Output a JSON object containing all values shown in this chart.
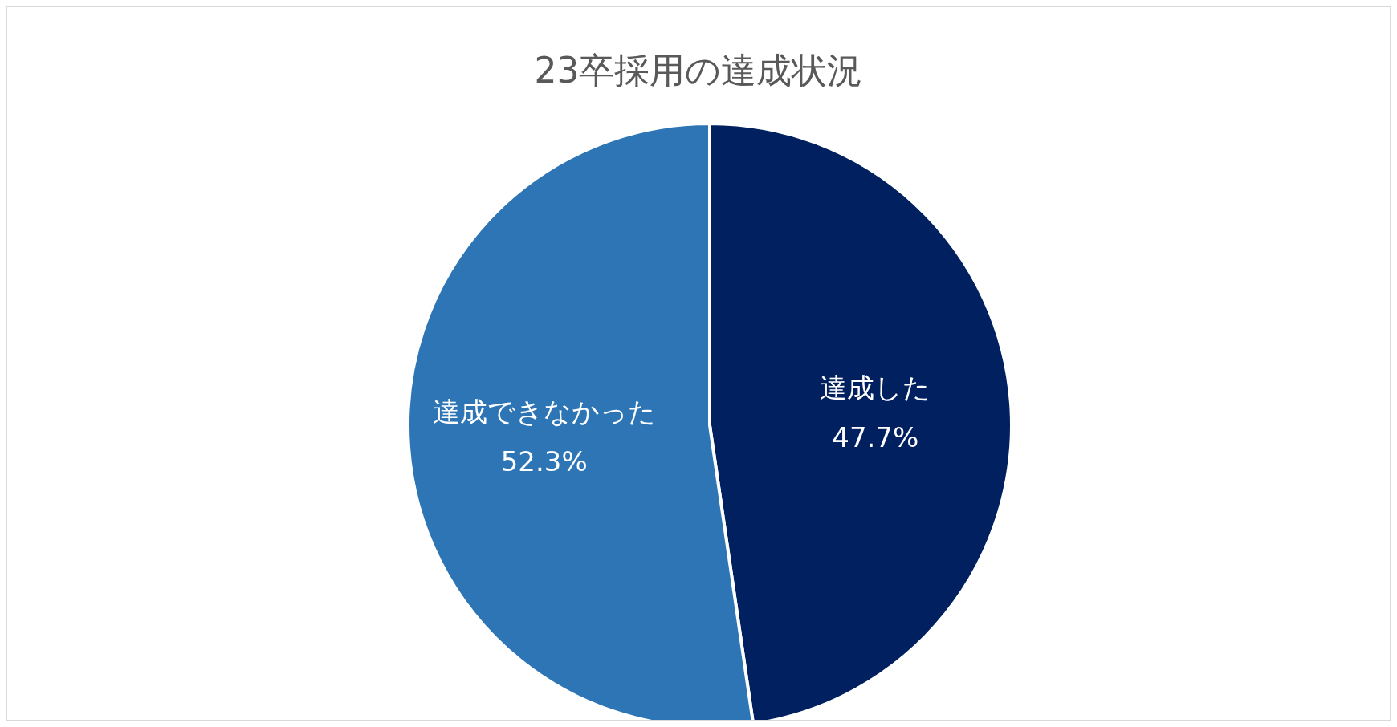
{
  "chart_data": {
    "type": "pie",
    "title": "23卒採用の達成状況",
    "categories": [
      "達成した",
      "達成できなかった"
    ],
    "values": [
      47.7,
      52.3
    ],
    "colors": [
      "#002060",
      "#2e75b6"
    ],
    "value_labels": [
      "47.7%",
      "52.3%"
    ],
    "legend": false
  }
}
